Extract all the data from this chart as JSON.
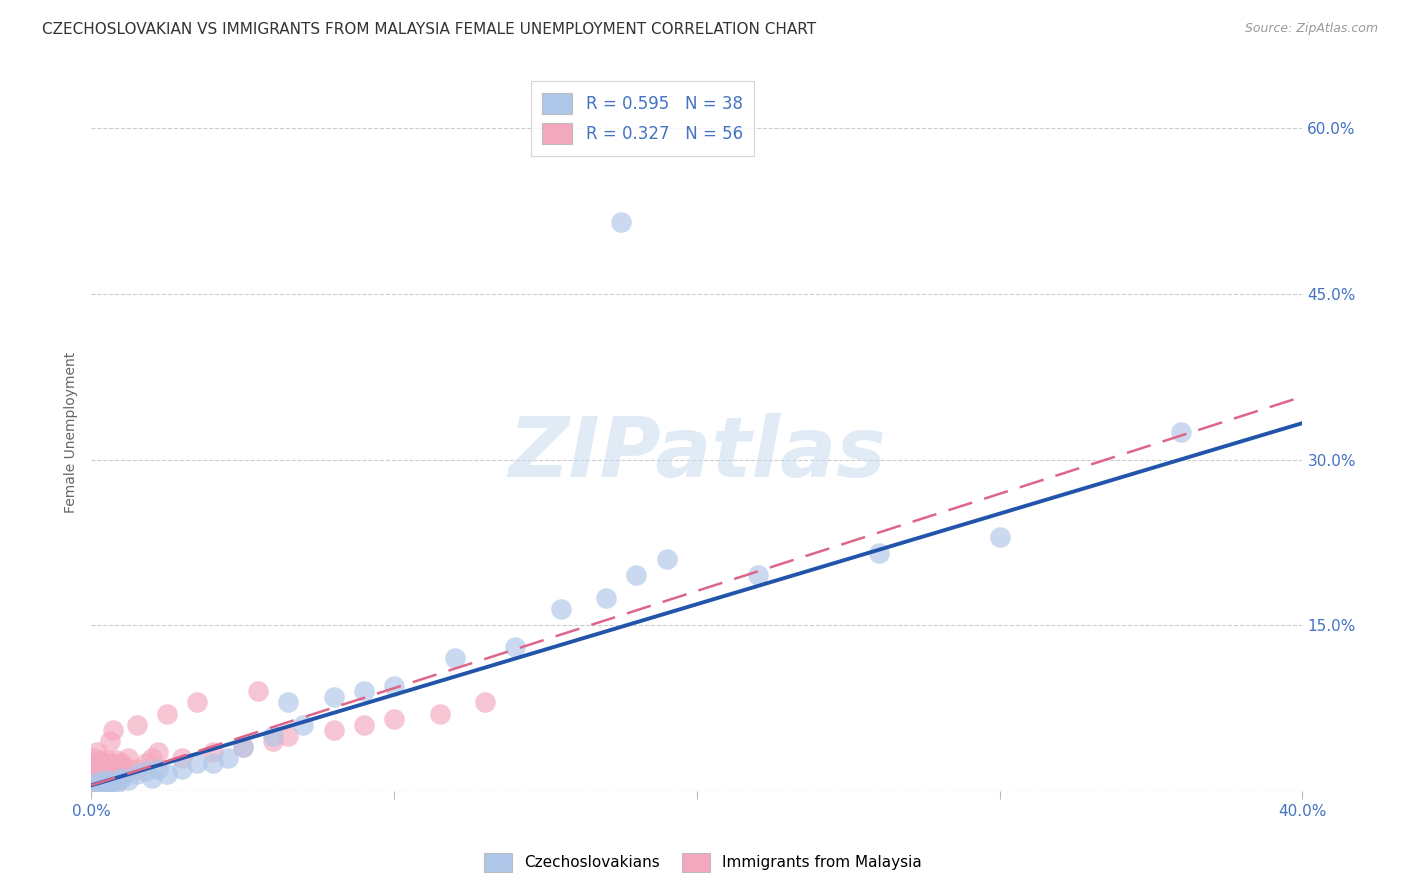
{
  "title": "CZECHOSLOVAKIAN VS IMMIGRANTS FROM MALAYSIA FEMALE UNEMPLOYMENT CORRELATION CHART",
  "source": "Source: ZipAtlas.com",
  "ylabel": "Female Unemployment",
  "watermark": "ZIPatlas",
  "xmin": 0.0,
  "xmax": 0.4,
  "ymin": 0.0,
  "ymax": 0.65,
  "yticks": [
    0.0,
    0.15,
    0.3,
    0.45,
    0.6
  ],
  "xticks": [
    0.0,
    0.1,
    0.2,
    0.3,
    0.4
  ],
  "blue_R": 0.595,
  "blue_N": 38,
  "pink_R": 0.327,
  "pink_N": 56,
  "blue_color": "#AEC6E8",
  "pink_color": "#F4A8BE",
  "blue_line_color": "#2255AA",
  "pink_line_color": "#DD6688",
  "legend_color": "#4472C4",
  "blue_line_slope": 0.82,
  "blue_line_intercept": 0.005,
  "pink_line_slope": 0.88,
  "pink_line_intercept": 0.005,
  "blue_scatter_x": [
    0.001,
    0.002,
    0.003,
    0.004,
    0.005,
    0.006,
    0.007,
    0.008,
    0.009,
    0.01,
    0.012,
    0.015,
    0.018,
    0.02,
    0.022,
    0.025,
    0.03,
    0.035,
    0.04,
    0.045,
    0.05,
    0.06,
    0.065,
    0.07,
    0.08,
    0.09,
    0.1,
    0.12,
    0.14,
    0.155,
    0.17,
    0.18,
    0.19,
    0.22,
    0.26,
    0.3,
    0.36,
    0.175
  ],
  "blue_scatter_y": [
    0.005,
    0.008,
    0.006,
    0.01,
    0.007,
    0.009,
    0.008,
    0.006,
    0.01,
    0.012,
    0.01,
    0.015,
    0.018,
    0.012,
    0.02,
    0.015,
    0.02,
    0.025,
    0.025,
    0.03,
    0.04,
    0.05,
    0.08,
    0.06,
    0.085,
    0.09,
    0.095,
    0.12,
    0.13,
    0.165,
    0.175,
    0.195,
    0.21,
    0.195,
    0.215,
    0.23,
    0.325,
    0.515
  ],
  "pink_scatter_x": [
    0.0,
    0.0,
    0.0,
    0.001,
    0.001,
    0.001,
    0.001,
    0.002,
    0.002,
    0.002,
    0.002,
    0.002,
    0.003,
    0.003,
    0.003,
    0.003,
    0.004,
    0.004,
    0.004,
    0.005,
    0.005,
    0.005,
    0.006,
    0.006,
    0.006,
    0.006,
    0.007,
    0.007,
    0.007,
    0.008,
    0.008,
    0.008,
    0.009,
    0.009,
    0.01,
    0.01,
    0.012,
    0.012,
    0.015,
    0.015,
    0.018,
    0.02,
    0.022,
    0.025,
    0.03,
    0.035,
    0.04,
    0.05,
    0.055,
    0.06,
    0.065,
    0.08,
    0.09,
    0.1,
    0.115,
    0.13
  ],
  "pink_scatter_y": [
    0.008,
    0.015,
    0.025,
    0.005,
    0.01,
    0.02,
    0.03,
    0.008,
    0.012,
    0.018,
    0.025,
    0.035,
    0.006,
    0.012,
    0.02,
    0.028,
    0.01,
    0.015,
    0.025,
    0.01,
    0.018,
    0.028,
    0.012,
    0.018,
    0.025,
    0.045,
    0.015,
    0.022,
    0.055,
    0.012,
    0.018,
    0.028,
    0.015,
    0.025,
    0.015,
    0.025,
    0.02,
    0.03,
    0.02,
    0.06,
    0.025,
    0.03,
    0.035,
    0.07,
    0.03,
    0.08,
    0.035,
    0.04,
    0.09,
    0.045,
    0.05,
    0.055,
    0.06,
    0.065,
    0.07,
    0.08
  ],
  "grid_color": "#CCCCCC",
  "bg_color": "#FFFFFF",
  "title_fontsize": 11,
  "axis_label_fontsize": 10,
  "tick_fontsize": 11,
  "watermark_fontsize": 60,
  "watermark_color": "#C8DCF0",
  "watermark_alpha": 0.55
}
